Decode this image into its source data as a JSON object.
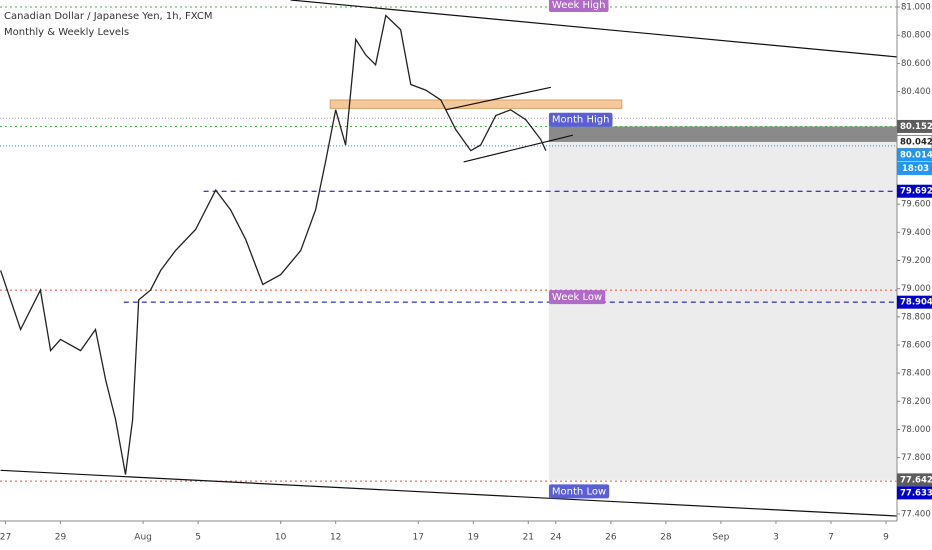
{
  "chart_data": {
    "type": "line",
    "title": "Canadian Dollar / Japanese Yen, 1h, FXCM",
    "subtitle": "Monthly & Weekly Levels",
    "color": "#222222",
    "x": [
      -0.18,
      0.55,
      1.27,
      1.64,
      2,
      2.73,
      3.27,
      3.64,
      4,
      4.36,
      4.62,
      4.84,
      5.27,
      5.64,
      6.18,
      6.91,
      7.64,
      8.18,
      8.73,
      9.35,
      10,
      10.73,
      11.27,
      11.64,
      12,
      12.36,
      12.73,
      13.09,
      13.45,
      13.82,
      14.36,
      14.73,
      15.27,
      15.82,
      16.36,
      16.91,
      17.27,
      17.82,
      18.36,
      18.91,
      19.45,
      19.64
    ],
    "values": [
      79.13,
      78.71,
      78.99,
      78.56,
      78.64,
      78.56,
      78.71,
      78.35,
      78.07,
      77.68,
      78.07,
      78.92,
      78.99,
      79.13,
      79.27,
      79.42,
      79.7,
      79.56,
      79.35,
      79.03,
      79.1,
      79.27,
      79.56,
      79.91,
      80.27,
      80.02,
      80.77,
      80.66,
      80.59,
      80.94,
      80.84,
      80.45,
      80.41,
      80.34,
      80.13,
      79.98,
      80.02,
      80.23,
      80.27,
      80.2,
      80.06,
      79.98
    ],
    "xlim": [
      -0.2,
      32.4
    ],
    "ylim": [
      77.35,
      81.05
    ],
    "xticks": [
      {
        "value": 0,
        "label": "27"
      },
      {
        "value": 2,
        "label": "29"
      },
      {
        "value": 5,
        "label": "Aug"
      },
      {
        "value": 7,
        "label": "5"
      },
      {
        "value": 10,
        "label": "10"
      },
      {
        "value": 12,
        "label": "12"
      },
      {
        "value": 15,
        "label": "17"
      },
      {
        "value": 17,
        "label": "19"
      },
      {
        "value": 19,
        "label": "21"
      },
      {
        "value": 20,
        "label": "24"
      },
      {
        "value": 22,
        "label": "26"
      },
      {
        "value": 24,
        "label": "28"
      },
      {
        "value": 26,
        "label": "Sep"
      },
      {
        "value": 28,
        "label": "3"
      },
      {
        "value": 30,
        "label": "7"
      },
      {
        "value": 32,
        "label": "9"
      }
    ],
    "yticks": [
      {
        "value": 81,
        "label": "81.000"
      },
      {
        "value": 80.8,
        "label": "80.800"
      },
      {
        "value": 80.6,
        "label": "80.600"
      },
      {
        "value": 80.4,
        "label": "80.400"
      },
      {
        "value": 79.6,
        "label": "79.600"
      },
      {
        "value": 79.4,
        "label": "79.400"
      },
      {
        "value": 79.2,
        "label": "79.200"
      },
      {
        "value": 79,
        "label": "79.000"
      },
      {
        "value": 78.8,
        "label": "78.800"
      },
      {
        "value": 78.6,
        "label": "78.600"
      },
      {
        "value": 78.4,
        "label": "78.400"
      },
      {
        "value": 78.2,
        "label": "78.200"
      },
      {
        "value": 78,
        "label": "78.000"
      },
      {
        "value": 77.8,
        "label": "77.800"
      },
      {
        "value": 77.4,
        "label": "77.400"
      }
    ],
    "price_labels": [
      {
        "value": 80.152,
        "color": "#5d5d5d"
      },
      {
        "value": 80.042,
        "color": "#ffffff"
      },
      {
        "value": 80.014,
        "color": "#2196f3"
      },
      {
        "value": 79.692,
        "color": "#0000cc"
      },
      {
        "value": 78.904,
        "color": "#0000cc"
      },
      {
        "value": 77.642,
        "color": "#5d5d5d"
      },
      {
        "value": 77.633,
        "color": "#0000cc"
      }
    ],
    "countdown": "18:03",
    "levels": [
      {
        "value": 81,
        "color": "#4caf50",
        "dash": "2 3",
        "x0": -0.2
      },
      {
        "value": 80.21,
        "color": "#9e9e9e",
        "dash": "1 2",
        "x0": -0.2
      },
      {
        "value": 80.152,
        "color": "#4caf50",
        "dash": "2 3",
        "x0": -0.2
      },
      {
        "value": 80.014,
        "color": "#2196f3",
        "dash": "1 2",
        "x0": -0.2
      },
      {
        "value": 79.692,
        "color": "#0000aa",
        "dash": "5 4",
        "x0": 7.2
      },
      {
        "value": 78.99,
        "color": "#f44336",
        "dash": "2 3",
        "x0": -0.2
      },
      {
        "value": 78.904,
        "color": "#0000aa",
        "dash": "5 4",
        "x0": 4.3
      },
      {
        "value": 77.633,
        "color": "#f44336",
        "dash": "2 3",
        "x0": -0.2
      }
    ],
    "zones": [
      {
        "y0": 77.642,
        "y1": 80.042,
        "x0": 19.75,
        "x1": 32.4,
        "color": "#ececec"
      },
      {
        "y0": 80.042,
        "y1": 80.152,
        "x0": 19.75,
        "x1": 32.4,
        "color": "#8a8a8a"
      },
      {
        "y0": 80.28,
        "y1": 80.34,
        "x0": 11.8,
        "x1": 22.4,
        "color": "#f3c99b"
      }
    ],
    "trendlines": [
      {
        "x": [
          10.36,
          32.44
        ],
        "y": [
          81.05,
          80.645
        ]
      },
      {
        "x": [
          -0.18,
          32.44
        ],
        "y": [
          77.71,
          77.385
        ]
      },
      {
        "x": [
          16,
          19.82
        ],
        "y": [
          80.27,
          80.43
        ]
      },
      {
        "x": [
          16.65,
          20.62
        ],
        "y": [
          79.9,
          80.09
        ]
      }
    ],
    "annotations": [
      {
        "text": "Week High",
        "x": 19.75,
        "y": 81.05,
        "color": "#b06ac8"
      },
      {
        "text": "Month High",
        "x": 19.75,
        "y": 80.2,
        "color": "#5b5fd6"
      },
      {
        "text": "Week Low",
        "x": 19.75,
        "y": 78.94,
        "color": "#b06ac8"
      },
      {
        "text": "Month Low",
        "x": 19.75,
        "y": 77.56,
        "color": "#5b5fd6"
      }
    ]
  }
}
